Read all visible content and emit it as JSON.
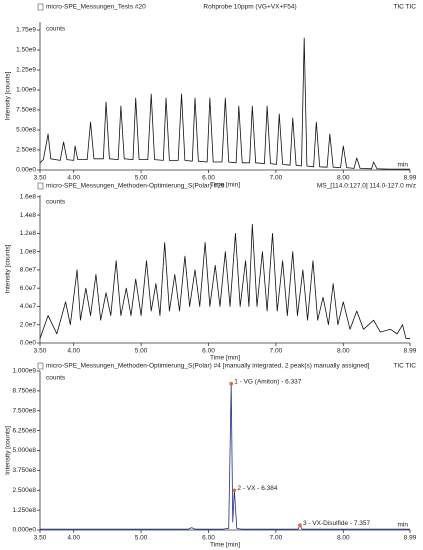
{
  "chart_data": [
    {
      "type": "line",
      "title": "micro-SPE_Messungen_Tests #20",
      "subtitle": "Rohprobe 10ppm (VG+VX+F54)",
      "trace_label": "TIC TIC",
      "y_unit": "counts",
      "xlabel": "Time [min]",
      "ylabel": "Intensity [counts]",
      "x_unit": "min",
      "xlim": [
        3.5,
        8.99
      ],
      "ylim": [
        0,
        1850000000.0
      ],
      "xticks": [
        {
          "value": 3.5,
          "label": "3.50"
        },
        {
          "value": 4,
          "label": "4.00"
        },
        {
          "value": 5,
          "label": "5.00"
        },
        {
          "value": 6,
          "label": "6.00"
        },
        {
          "value": 7,
          "label": "7.00"
        },
        {
          "value": 8,
          "label": "8.00"
        },
        8.99
      ],
      "yticks": [
        {
          "value": 0,
          "label": "0.00e0"
        },
        {
          "value": 250000000.0,
          "label": "2.50e8"
        },
        {
          "value": 500000000.0,
          "label": "5.00e8"
        },
        {
          "value": 750000000.0,
          "label": "7.50e8"
        },
        {
          "value": 1000000000.0,
          "label": "1.00e9"
        },
        {
          "value": 1250000000.0,
          "label": "1.25e9"
        },
        {
          "value": 1500000000.0,
          "label": "1.50e9"
        },
        {
          "value": 1750000000.0,
          "label": "1.75e9"
        }
      ],
      "x": [
        3.5,
        3.55,
        3.62,
        3.66,
        3.8,
        3.85,
        3.9,
        4.0,
        4.02,
        4.06,
        4.2,
        4.25,
        4.3,
        4.44,
        4.48,
        4.53,
        4.66,
        4.7,
        4.75,
        4.88,
        4.92,
        4.97,
        5.1,
        5.15,
        5.2,
        5.33,
        5.37,
        5.42,
        5.55,
        5.6,
        5.65,
        5.76,
        5.8,
        5.85,
        5.98,
        6.02,
        6.07,
        6.2,
        6.25,
        6.3,
        6.41,
        6.45,
        6.5,
        6.61,
        6.65,
        6.7,
        6.83,
        6.87,
        6.92,
        7.01,
        7.05,
        7.1,
        7.21,
        7.25,
        7.3,
        7.38,
        7.42,
        7.46,
        7.56,
        7.6,
        7.65,
        7.76,
        7.8,
        7.85,
        7.96,
        8.0,
        8.05,
        8.16,
        8.2,
        8.25,
        8.42,
        8.45,
        8.5,
        8.7,
        8.99
      ],
      "series": [
        {
          "color": "#111111",
          "values": [
            90000000.0,
            130000000.0,
            450000000.0,
            140000000.0,
            120000000.0,
            350000000.0,
            130000000.0,
            120000000.0,
            300000000.0,
            130000000.0,
            130000000.0,
            600000000.0,
            140000000.0,
            140000000.0,
            850000000.0,
            140000000.0,
            130000000.0,
            800000000.0,
            140000000.0,
            130000000.0,
            900000000.0,
            130000000.0,
            130000000.0,
            950000000.0,
            130000000.0,
            120000000.0,
            900000000.0,
            120000000.0,
            120000000.0,
            950000000.0,
            120000000.0,
            110000000.0,
            900000000.0,
            110000000.0,
            100000000.0,
            900000000.0,
            100000000.0,
            100000000.0,
            900000000.0,
            100000000.0,
            90000000.0,
            800000000.0,
            90000000.0,
            90000000.0,
            800000000.0,
            90000000.0,
            80000000.0,
            800000000.0,
            80000000.0,
            70000000.0,
            700000000.0,
            70000000.0,
            60000000.0,
            650000000.0,
            60000000.0,
            50000000.0,
            1650000000.0,
            50000000.0,
            40000000.0,
            600000000.0,
            40000000.0,
            35000000.0,
            450000000.0,
            35000000.0,
            30000000.0,
            300000000.0,
            30000000.0,
            20000000.0,
            150000000.0,
            20000000.0,
            15000000.0,
            100000000.0,
            15000000.0,
            10000000.0,
            10000000.0
          ]
        }
      ]
    },
    {
      "type": "line",
      "title": "micro-SPE_Messungen_Methoden-Optimierung_S(Polar) #29",
      "trace_label": "MS_[114.0:127.0] 114.0-127.0 m/z",
      "y_unit": "counts",
      "xlabel": "Time [min]",
      "ylabel": "Intensity [counts]",
      "xlim": [
        3.5,
        8.99
      ],
      "ylim": [
        0,
        162000000.0
      ],
      "xticks": [
        {
          "value": 3.5,
          "label": "3.50"
        },
        {
          "value": 4,
          "label": "4.00"
        },
        {
          "value": 5,
          "label": "5.00"
        },
        {
          "value": 6,
          "label": "6.00"
        },
        {
          "value": 7,
          "label": "7.00"
        },
        {
          "value": 8,
          "label": "8.00"
        },
        8.99
      ],
      "yticks": [
        {
          "value": 0,
          "label": "0.0e0"
        },
        {
          "value": 20000000.0,
          "label": "2.0e7"
        },
        {
          "value": 40000000.0,
          "label": "4.0e7"
        },
        {
          "value": 60000000.0,
          "label": "6.0e7"
        },
        {
          "value": 80000000.0,
          "label": "8.0e7"
        },
        {
          "value": 100000000.0,
          "label": "1.0e8"
        },
        {
          "value": 120000000.0,
          "label": "1.2e8"
        },
        {
          "value": 140000000.0,
          "label": "1.4e8"
        },
        {
          "value": 160000000.0,
          "label": "1.6e8"
        }
      ],
      "x": [
        3.5,
        3.62,
        3.75,
        3.88,
        3.95,
        4.05,
        4.1,
        4.18,
        4.25,
        4.33,
        4.4,
        4.48,
        4.55,
        4.63,
        4.7,
        4.78,
        4.85,
        4.92,
        5.0,
        5.08,
        5.15,
        5.22,
        5.28,
        5.35,
        5.42,
        5.5,
        5.57,
        5.65,
        5.72,
        5.8,
        5.87,
        5.95,
        6.02,
        6.1,
        6.17,
        6.25,
        6.32,
        6.4,
        6.47,
        6.55,
        6.6,
        6.65,
        6.72,
        6.8,
        6.87,
        6.95,
        7.02,
        7.1,
        7.17,
        7.25,
        7.32,
        7.4,
        7.47,
        7.55,
        7.62,
        7.7,
        7.78,
        7.85,
        7.92,
        8.0,
        8.1,
        8.2,
        8.3,
        8.45,
        8.55,
        8.7,
        8.8,
        8.88,
        8.93,
        8.99
      ],
      "series": [
        {
          "color": "#111111",
          "values": [
            5000000.0,
            30000000.0,
            10000000.0,
            45000000.0,
            20000000.0,
            80000000.0,
            25000000.0,
            60000000.0,
            30000000.0,
            75000000.0,
            25000000.0,
            55000000.0,
            30000000.0,
            90000000.0,
            30000000.0,
            60000000.0,
            30000000.0,
            70000000.0,
            30000000.0,
            90000000.0,
            35000000.0,
            65000000.0,
            30000000.0,
            110000000.0,
            35000000.0,
            75000000.0,
            35000000.0,
            95000000.0,
            40000000.0,
            80000000.0,
            40000000.0,
            110000000.0,
            40000000.0,
            85000000.0,
            40000000.0,
            100000000.0,
            40000000.0,
            120000000.0,
            40000000.0,
            90000000.0,
            40000000.0,
            130000000.0,
            40000000.0,
            100000000.0,
            35000000.0,
            120000000.0,
            35000000.0,
            90000000.0,
            30000000.0,
            100000000.0,
            30000000.0,
            80000000.0,
            25000000.0,
            90000000.0,
            25000000.0,
            50000000.0,
            20000000.0,
            65000000.0,
            20000000.0,
            45000000.0,
            15000000.0,
            35000000.0,
            15000000.0,
            25000000.0,
            12000000.0,
            15000000.0,
            10000000.0,
            20000000.0,
            5000000.0,
            5000000.0
          ]
        }
      ]
    },
    {
      "type": "line",
      "title": "micro-SPE_Messungen_Methoden-Optimierung_S(Polar) #4 [manually integrated, 2 peak(s) manually assigned]",
      "trace_label": "TIC TIC",
      "y_unit": "counts",
      "xlabel": "Time [min]",
      "ylabel": "Intensity [counts]",
      "x_unit": "min",
      "xlim": [
        3.5,
        8.99
      ],
      "ylim": [
        0,
        1000000000.0
      ],
      "xticks": [
        {
          "value": 3.5,
          "label": "3.50"
        },
        {
          "value": 4,
          "label": "4.00"
        },
        {
          "value": 5,
          "label": "5.00"
        },
        {
          "value": 6,
          "label": "6.00"
        },
        {
          "value": 7,
          "label": "7.00"
        },
        {
          "value": 8,
          "label": "8.00"
        },
        8.99
      ],
      "yticks": [
        {
          "value": 0,
          "label": "0.000e0"
        },
        {
          "value": 125000000.0,
          "label": "1.250e8"
        },
        {
          "value": 250000000.0,
          "label": "2.500e8"
        },
        {
          "value": 375000000.0,
          "label": "3.750e8"
        },
        {
          "value": 500000000.0,
          "label": "5.000e8"
        },
        {
          "value": 625000000.0,
          "label": "6.250e8"
        },
        {
          "value": 750000000.0,
          "label": "7.500e8"
        },
        {
          "value": 875000000.0,
          "label": "8.750e8"
        },
        {
          "value": 1000000000.0,
          "label": "1.000e9"
        }
      ],
      "x": [
        3.5,
        5.7,
        5.75,
        5.8,
        6.2,
        6.3,
        6.337,
        6.36,
        6.384,
        6.42,
        6.5,
        7.33,
        7.357,
        7.39,
        8.99
      ],
      "series": [
        {
          "color": "#1f2f80",
          "values": [
            5000000.0,
            5000000.0,
            15000000.0,
            5000000.0,
            5000000.0,
            10000000.0,
            920000000.0,
            50000000.0,
            250000000.0,
            10000000.0,
            5000000.0,
            5000000.0,
            30000000.0,
            5000000.0,
            5000000.0
          ]
        }
      ],
      "annotations": [
        {
          "text": "1 - VG (Amiton) - 6.337",
          "x": 6.337,
          "y": 920000000.0
        },
        {
          "text": "2 - VX - 6.384",
          "x": 6.384,
          "y": 250000000.0
        },
        {
          "text": "3 - VX-Disulfide - 7.357",
          "x": 7.357,
          "y": 30000000.0
        }
      ]
    }
  ]
}
